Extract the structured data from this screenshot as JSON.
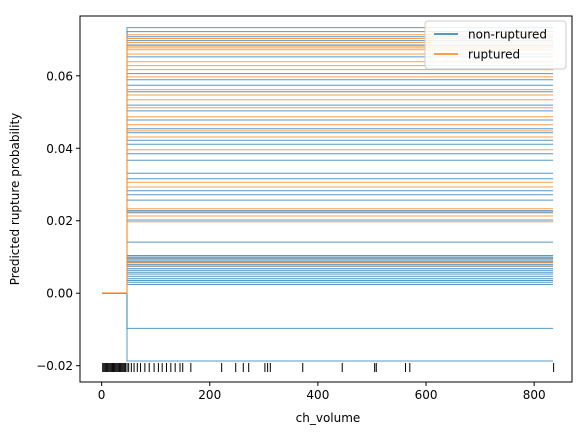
{
  "chart_data": {
    "type": "line",
    "title": "",
    "xlabel": "ch_volume",
    "ylabel": "Predicted rupture probability",
    "xlim": [
      -40,
      870
    ],
    "ylim": [
      -0.0245,
      0.0765
    ],
    "xticks": [
      0,
      200,
      400,
      600,
      800
    ],
    "xtick_labels": [
      "0",
      "200",
      "400",
      "600",
      "800"
    ],
    "yticks": [
      -0.02,
      0.0,
      0.02,
      0.04,
      0.06
    ],
    "ytick_labels": [
      "−0.02",
      "0.00",
      "0.02",
      "0.04",
      "0.06"
    ],
    "grid": false,
    "legend": {
      "placement": "top-right",
      "entries": [
        {
          "label": "non-ruptured",
          "color": "#1f77b4"
        },
        {
          "label": "ruptured",
          "color": "#ff7f0e"
        }
      ]
    },
    "step_x": [
      1,
      47,
      50,
      835
    ],
    "series": [
      {
        "name": "non-ruptured",
        "color": "#1f77b4",
        "levels": [
          -0.0187,
          -0.0097,
          0.0024,
          0.003,
          0.0035,
          0.004,
          0.0047,
          0.0053,
          0.0058,
          0.0063,
          0.0068,
          0.0074,
          0.0079,
          0.0084,
          0.0088,
          0.0092,
          0.0096,
          0.01,
          0.0104,
          0.0141,
          0.0202,
          0.0222,
          0.0228,
          0.0257,
          0.0272,
          0.0283,
          0.0316,
          0.0331,
          0.0367,
          0.0385,
          0.0411,
          0.0422,
          0.0443,
          0.0454,
          0.0478,
          0.0503,
          0.0519,
          0.0556,
          0.0574,
          0.0589,
          0.0606,
          0.0652,
          0.0685,
          0.0697,
          0.0708,
          0.0722,
          0.0733
        ]
      },
      {
        "name": "ruptured",
        "color": "#ff7f0e",
        "levels": [
          0.0075,
          0.0085,
          0.0098,
          0.0197,
          0.0213,
          0.0225,
          0.0233,
          0.0293,
          0.0306,
          0.0396,
          0.0431,
          0.0448,
          0.0465,
          0.0487,
          0.0512,
          0.0534,
          0.0547,
          0.0562,
          0.0597,
          0.0617,
          0.0628,
          0.0639,
          0.066,
          0.0672,
          0.0677,
          0.0682,
          0.0692,
          0.0703,
          0.0713
        ]
      }
    ],
    "rug_x": [
      2,
      4,
      6,
      8,
      10,
      12,
      14,
      16,
      18,
      20,
      22,
      24,
      26,
      28,
      30,
      32,
      34,
      36,
      38,
      40,
      42,
      44,
      47,
      50,
      55,
      60,
      66,
      72,
      80,
      88,
      97,
      105,
      112,
      120,
      128,
      136,
      145,
      150,
      165,
      222,
      248,
      262,
      272,
      302,
      307,
      312,
      372,
      445,
      505,
      508,
      562,
      570,
      836
    ],
    "rug_y": -0.0205
  }
}
